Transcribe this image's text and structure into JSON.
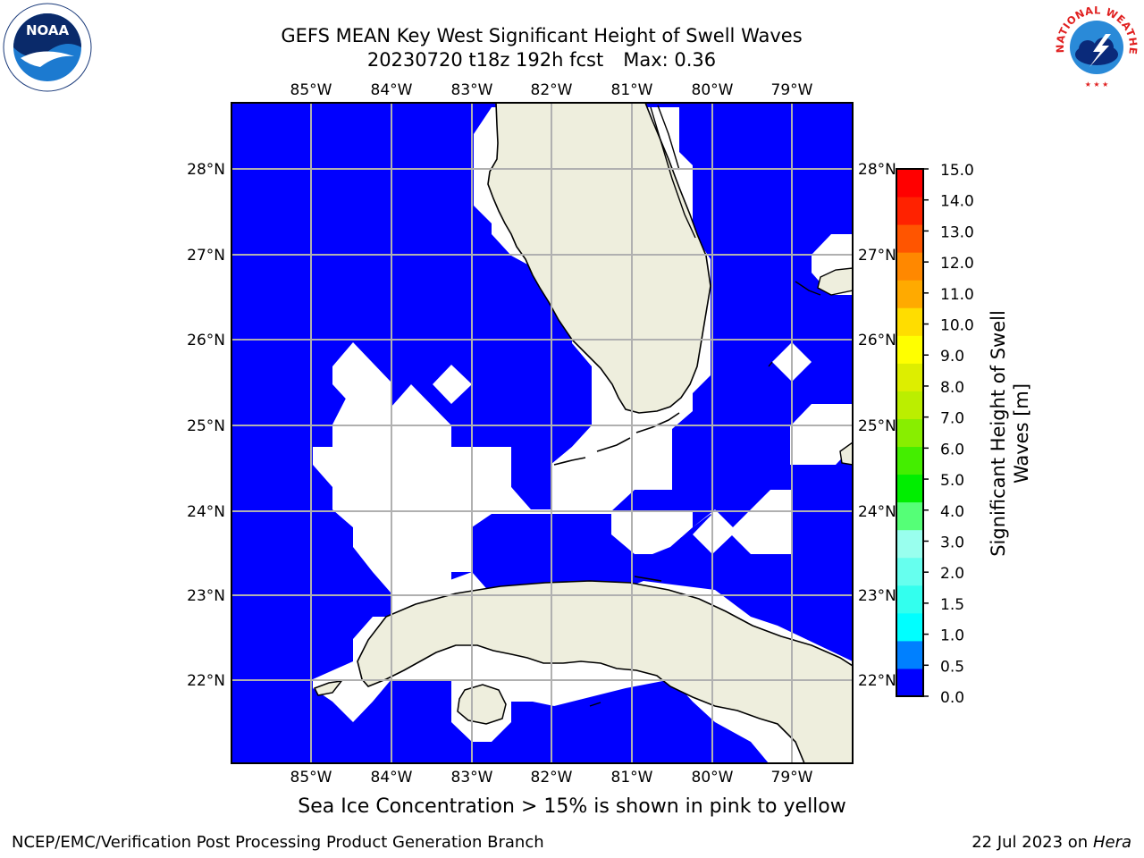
{
  "title": {
    "line1": "GEFS MEAN Key West Significant Height of Swell Waves",
    "date_run": "20230720 t18z 192h fcst",
    "max_label": "Max: 0.36"
  },
  "map": {
    "lon_labels": [
      "85°W",
      "84°W",
      "83°W",
      "82°W",
      "81°W",
      "80°W",
      "79°W"
    ],
    "lat_labels": [
      "28°N",
      "27°N",
      "26°N",
      "25°N",
      "24°N",
      "23°N",
      "22°N"
    ],
    "colors": {
      "ocean": "#0000ff",
      "land": "#eeeedd",
      "masked": "#ffffff",
      "grid": "#b0b0b0"
    }
  },
  "colorbar": {
    "label_line1": "Significant Height of Swell",
    "label_line2": "Waves [m]",
    "ticks": [
      "0.0",
      "0.5",
      "1.0",
      "1.5",
      "2.0",
      "3.0",
      "4.0",
      "5.0",
      "6.0",
      "7.0",
      "8.0",
      "9.0",
      "10.0",
      "11.0",
      "12.0",
      "13.0",
      "14.0",
      "15.0"
    ],
    "colors": [
      "#0000ff",
      "#0080ff",
      "#00ffff",
      "#33ffee",
      "#66ffee",
      "#99ffee",
      "#55ff77",
      "#00ee00",
      "#44ee00",
      "#88ee00",
      "#bbee00",
      "#ddee00",
      "#ffff00",
      "#ffdd00",
      "#ffaa00",
      "#ff8800",
      "#ff5500",
      "#ff2200",
      "#ff0000"
    ]
  },
  "note": "Sea Ice Concentration > 15% is shown in pink to yellow",
  "footer": {
    "left": "NCEP/EMC/Verification Post Processing Product Generation Branch",
    "right_prefix": "22 Jul 2023 on ",
    "right_italic": "Hera"
  },
  "logos": {
    "noaa": "NOAA",
    "nws": "NATIONAL WEATHER SERVICE"
  }
}
